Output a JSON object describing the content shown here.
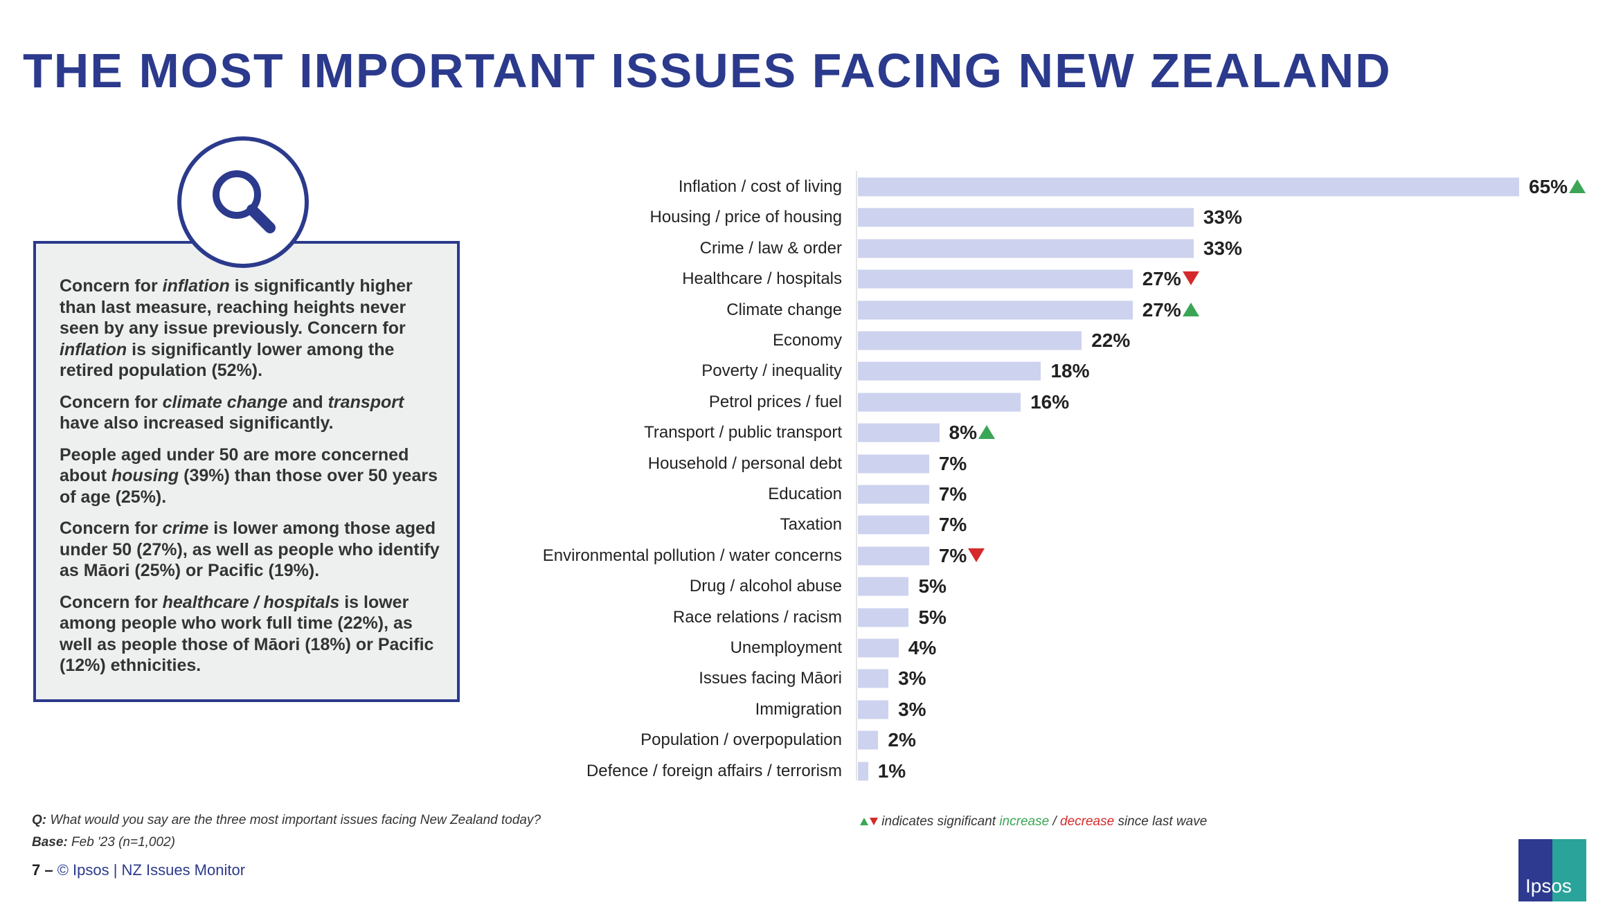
{
  "title": "THE MOST IMPORTANT ISSUES FACING NEW ZEALAND",
  "commentary": [
    {
      "parts": [
        "Concern for ",
        {
          "i": "inflation"
        },
        " is significantly higher than last measure, reaching heights never seen by any issue previously. Concern for ",
        {
          "i": "inflation"
        },
        " is significantly lower among the retired population (52%)."
      ]
    },
    {
      "parts": [
        "Concern for ",
        {
          "i": "climate change"
        },
        " and ",
        {
          "i": "transport"
        },
        " have also increased significantly."
      ]
    },
    {
      "parts": [
        "People aged under 50 are more concerned about ",
        {
          "i": "housing"
        },
        " (39%) than those over 50 years of age (25%)."
      ]
    },
    {
      "parts": [
        "Concern for ",
        {
          "i": "crime"
        },
        " is lower among those aged under 50 (27%), as well as people who identify as Māori (25%) or Pacific (19%)."
      ]
    },
    {
      "parts": [
        "Concern for ",
        {
          "i": "healthcare / hospitals"
        },
        " is lower among people who work full time (22%), as well as people those of Māori (18%) or Pacific (12%) ethnicities."
      ]
    }
  ],
  "chart_data": {
    "type": "bar",
    "orientation": "horizontal",
    "title": "THE MOST IMPORTANT ISSUES FACING NEW ZEALAND",
    "unit": "%",
    "xlim": [
      0,
      65
    ],
    "categories": [
      "Inflation / cost of living",
      "Housing / price of housing",
      "Crime / law & order",
      "Healthcare / hospitals",
      "Climate change",
      "Economy",
      "Poverty / inequality",
      "Petrol prices / fuel",
      "Transport / public transport",
      "Household / personal debt",
      "Education",
      "Taxation",
      "Environmental pollution / water concerns",
      "Drug / alcohol abuse",
      "Race relations / racism",
      "Unemployment",
      "Issues facing Māori",
      "Immigration",
      "Population / overpopulation",
      "Defence / foreign affairs / terrorism"
    ],
    "values": [
      65,
      33,
      33,
      27,
      27,
      22,
      18,
      16,
      8,
      7,
      7,
      7,
      7,
      5,
      5,
      4,
      3,
      3,
      2,
      1
    ],
    "value_labels": [
      "65%",
      "33%",
      "33%",
      "27%",
      "27%",
      "22%",
      "18%",
      "16%",
      "8%",
      "7%",
      "7%",
      "7%",
      "7%",
      "5%",
      "5%",
      "4%",
      "3%",
      "3%",
      "2%",
      "1%"
    ],
    "significance": [
      "up",
      "",
      "",
      "down",
      "up",
      "",
      "",
      "",
      "up",
      "",
      "",
      "",
      "down",
      "",
      "",
      "",
      "",
      "",
      "",
      ""
    ],
    "colors": {
      "bar": "#cdd2ee",
      "increase": "#3aa655",
      "decrease": "#d42a2a"
    }
  },
  "footer": {
    "question_label": "Q:",
    "question": " What would you say are the three most important issues facing New Zealand today?",
    "base_label": "Base:",
    "base": " Feb '23 (n=1,002)",
    "page": "7 –",
    "source": " © Ipsos | NZ Issues Monitor",
    "legend_pre": " indicates significant ",
    "legend_increase": "increase",
    "legend_sep": " / ",
    "legend_decrease": "decrease",
    "legend_post": " since last wave",
    "logo_text": "Ipsos"
  }
}
